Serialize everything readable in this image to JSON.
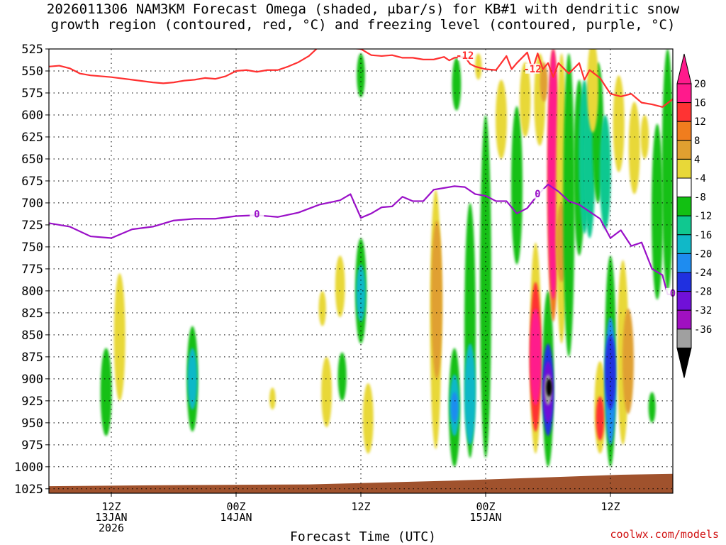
{
  "title_line1": "2026011306 NAM3KM Forecast Omega (shaded, μbar/s) for KB#1 with dendritic snow",
  "title_line2": "growth region (contoured, red, °C) and freezing level (contoured, purple, °C)",
  "credit": "coolwx.com/models",
  "chart_data": {
    "type": "heatmap",
    "xlabel": "Forecast Time (UTC)",
    "ylabel": "",
    "x_ticks": [
      {
        "t": 6,
        "label": [
          "12Z",
          "13JAN",
          "2026"
        ]
      },
      {
        "t": 18,
        "label": [
          "00Z",
          "14JAN"
        ]
      },
      {
        "t": 30,
        "label": [
          "12Z"
        ]
      },
      {
        "t": 42,
        "label": [
          "00Z",
          "15JAN"
        ]
      },
      {
        "t": 54,
        "label": [
          "12Z"
        ]
      }
    ],
    "x_range_hours": [
      0,
      60
    ],
    "y_levels": [
      525,
      550,
      575,
      600,
      625,
      650,
      675,
      700,
      725,
      750,
      775,
      800,
      825,
      850,
      875,
      900,
      925,
      950,
      975,
      1000,
      1025
    ],
    "y_range": [
      525,
      1030
    ],
    "grid": true,
    "colorbar": {
      "labels": [
        "20",
        "16",
        "12",
        "8",
        "4",
        "-4",
        "-8",
        "-12",
        "-16",
        "-20",
        "-24",
        "-28",
        "-32",
        "-36"
      ],
      "bins": [
        {
          "lo": 20,
          "hi": 24,
          "color": "#ff1a8c"
        },
        {
          "lo": 16,
          "hi": 20,
          "color": "#ff3333"
        },
        {
          "lo": 12,
          "hi": 16,
          "color": "#f07d1e"
        },
        {
          "lo": 8,
          "hi": 12,
          "color": "#e0a030"
        },
        {
          "lo": 4,
          "hi": 8,
          "color": "#e8d838"
        },
        {
          "lo": -4,
          "hi": 4,
          "color": "#ffffff"
        },
        {
          "lo": -8,
          "hi": -4,
          "color": "#12c012"
        },
        {
          "lo": -12,
          "hi": -8,
          "color": "#10c890"
        },
        {
          "lo": -16,
          "hi": -12,
          "color": "#10b8c8"
        },
        {
          "lo": -20,
          "hi": -16,
          "color": "#1e8cf0"
        },
        {
          "lo": -24,
          "hi": -20,
          "color": "#2030e0"
        },
        {
          "lo": -28,
          "hi": -24,
          "color": "#7010d8"
        },
        {
          "lo": -32,
          "hi": -28,
          "color": "#a010c0"
        },
        {
          "lo": -36,
          "hi": -32,
          "color": "#a0a0a0"
        }
      ]
    },
    "omega_cells": [
      {
        "t": 5.5,
        "p0": 865,
        "p1": 965,
        "v": -6
      },
      {
        "t": 6.8,
        "p0": 780,
        "p1": 925,
        "v": 5
      },
      {
        "t": 13.8,
        "p0": 840,
        "p1": 960,
        "v": -6
      },
      {
        "t": 13.8,
        "p0": 865,
        "p1": 935,
        "v": -13
      },
      {
        "t": 21.5,
        "p0": 910,
        "p1": 935,
        "v": 5
      },
      {
        "t": 26.3,
        "p0": 800,
        "p1": 840,
        "v": 5
      },
      {
        "t": 26.7,
        "p0": 875,
        "p1": 955,
        "v": 5
      },
      {
        "t": 28.0,
        "p0": 760,
        "p1": 830,
        "v": 5
      },
      {
        "t": 28.2,
        "p0": 870,
        "p1": 925,
        "v": -6
      },
      {
        "t": 30.0,
        "p0": 740,
        "p1": 860,
        "v": -6
      },
      {
        "t": 30.0,
        "p0": 770,
        "p1": 835,
        "v": -13
      },
      {
        "t": 30.7,
        "p0": 905,
        "p1": 985,
        "v": 5
      },
      {
        "t": 30.0,
        "p0": 530,
        "p1": 580,
        "v": -6
      },
      {
        "t": 37.2,
        "p0": 685,
        "p1": 980,
        "v": 5
      },
      {
        "t": 37.3,
        "p0": 720,
        "p1": 900,
        "v": 9
      },
      {
        "t": 39.2,
        "p0": 535,
        "p1": 595,
        "v": -6
      },
      {
        "t": 39.0,
        "p0": 865,
        "p1": 1000,
        "v": -6
      },
      {
        "t": 39.0,
        "p0": 895,
        "p1": 965,
        "v": -14
      },
      {
        "t": 39.0,
        "p0": 915,
        "p1": 950,
        "v": -17
      },
      {
        "t": 40.5,
        "p0": 700,
        "p1": 990,
        "v": -6
      },
      {
        "t": 40.5,
        "p0": 860,
        "p1": 975,
        "v": -13
      },
      {
        "t": 42.0,
        "p0": 600,
        "p1": 990,
        "v": -6
      },
      {
        "t": 41.3,
        "p0": 530,
        "p1": 560,
        "v": 5
      },
      {
        "t": 43.5,
        "p0": 560,
        "p1": 650,
        "v": 5
      },
      {
        "t": 45.0,
        "p0": 590,
        "p1": 770,
        "v": -6
      },
      {
        "t": 45.8,
        "p0": 540,
        "p1": 625,
        "v": 5
      },
      {
        "t": 46.8,
        "p0": 745,
        "p1": 985,
        "v": 5
      },
      {
        "t": 46.8,
        "p0": 790,
        "p1": 960,
        "v": 17
      },
      {
        "t": 46.8,
        "p0": 820,
        "p1": 930,
        "v": 21
      },
      {
        "t": 47.2,
        "p0": 530,
        "p1": 635,
        "v": 5
      },
      {
        "t": 47.6,
        "p0": 540,
        "p1": 585,
        "v": 9
      },
      {
        "t": 48.0,
        "p0": 800,
        "p1": 1000,
        "v": -6
      },
      {
        "t": 48.0,
        "p0": 860,
        "p1": 965,
        "v": -22
      },
      {
        "t": 48.0,
        "p0": 880,
        "p1": 950,
        "v": -27
      },
      {
        "t": 48.0,
        "p0": 895,
        "p1": 930,
        "v": -33
      },
      {
        "t": 48.1,
        "p0": 900,
        "p1": 920,
        "v": -38
      },
      {
        "t": 48.5,
        "p0": 525,
        "p1": 835,
        "v": 13
      },
      {
        "t": 48.5,
        "p0": 525,
        "p1": 810,
        "v": 21
      },
      {
        "t": 49.3,
        "p0": 530,
        "p1": 860,
        "v": 5
      },
      {
        "t": 49.3,
        "p0": 700,
        "p1": 790,
        "v": 9
      },
      {
        "t": 50.0,
        "p0": 530,
        "p1": 875,
        "v": -6
      },
      {
        "t": 51.0,
        "p0": 560,
        "p1": 760,
        "v": -6
      },
      {
        "t": 51.5,
        "p0": 560,
        "p1": 735,
        "v": -9
      },
      {
        "t": 52.0,
        "p0": 560,
        "p1": 740,
        "v": -9
      },
      {
        "t": 52.8,
        "p0": 540,
        "p1": 700,
        "v": -6
      },
      {
        "t": 53.5,
        "p0": 600,
        "p1": 730,
        "v": -9
      },
      {
        "t": 52.3,
        "p0": 515,
        "p1": 620,
        "v": 5
      },
      {
        "t": 53.0,
        "p0": 880,
        "p1": 985,
        "v": 5
      },
      {
        "t": 53.0,
        "p0": 920,
        "p1": 970,
        "v": 17
      },
      {
        "t": 54.0,
        "p0": 760,
        "p1": 1000,
        "v": -6
      },
      {
        "t": 54.0,
        "p0": 830,
        "p1": 975,
        "v": -17
      },
      {
        "t": 54.0,
        "p0": 850,
        "p1": 935,
        "v": -23
      },
      {
        "t": 55.2,
        "p0": 765,
        "p1": 975,
        "v": 5
      },
      {
        "t": 55.7,
        "p0": 820,
        "p1": 940,
        "v": 9
      },
      {
        "t": 54.8,
        "p0": 555,
        "p1": 665,
        "v": 5
      },
      {
        "t": 56.3,
        "p0": 585,
        "p1": 690,
        "v": 5
      },
      {
        "t": 57.3,
        "p0": 600,
        "p1": 650,
        "v": 5
      },
      {
        "t": 58.5,
        "p0": 610,
        "p1": 810,
        "v": -6
      },
      {
        "t": 58.0,
        "p0": 915,
        "p1": 950,
        "v": -6
      },
      {
        "t": 59.5,
        "p0": 525,
        "p1": 800,
        "v": -6
      }
    ],
    "freezing_level": {
      "label": "0",
      "t": [
        0,
        2,
        4,
        6,
        8,
        10,
        12,
        14,
        16,
        18,
        20,
        22,
        24,
        26,
        28,
        29,
        30,
        31,
        32,
        33,
        34,
        35,
        36,
        37,
        38,
        39,
        40,
        41,
        42,
        43,
        44,
        45,
        46,
        47,
        48,
        49,
        50,
        51,
        52,
        53,
        54,
        55,
        56,
        57,
        58,
        59,
        59.5,
        60
      ],
      "p": [
        723,
        727,
        738,
        740,
        730,
        727,
        720,
        718,
        718,
        715,
        714,
        716,
        711,
        702,
        697,
        690,
        717,
        712,
        705,
        704,
        693,
        698,
        698,
        685,
        683,
        681,
        682,
        690,
        692,
        698,
        698,
        712,
        706,
        691,
        679,
        687,
        698,
        702,
        710,
        718,
        740,
        731,
        749,
        745,
        775,
        782,
        804,
        804
      ]
    },
    "dgz_line": {
      "label": "-12",
      "t": [
        0,
        1,
        2,
        3,
        4,
        5,
        6,
        8,
        10,
        11,
        12,
        13,
        14,
        15,
        16,
        17,
        18,
        19,
        20,
        21,
        22,
        23,
        24,
        25,
        26,
        27,
        28,
        29,
        30,
        31,
        32,
        33,
        34,
        35,
        36,
        37,
        38,
        38.5,
        39,
        40,
        40.5,
        41,
        42,
        43,
        44,
        44.5,
        45,
        46,
        46.5,
        47,
        47.5,
        48,
        48.5,
        49,
        50,
        51,
        51.5,
        52,
        53,
        54,
        55,
        56,
        57,
        58,
        59,
        60
      ],
      "p": [
        545,
        544,
        547,
        553,
        555,
        556,
        557,
        560,
        563,
        564,
        563,
        561,
        560,
        558,
        559,
        556,
        550,
        549,
        551,
        549,
        549,
        545,
        540,
        533,
        522,
        522,
        522,
        524,
        525,
        532,
        533,
        532,
        535,
        535,
        537,
        537,
        534,
        538,
        535,
        534,
        542,
        545,
        548,
        549,
        533,
        548,
        541,
        529,
        549,
        530,
        548,
        541,
        557,
        541,
        553,
        541,
        560,
        549,
        558,
        576,
        579,
        576,
        586,
        588,
        591,
        582
      ]
    },
    "terrain_p": [
      1022,
      1021,
      1020,
      1016,
      1012,
      1009,
      1008
    ],
    "terrain_t": [
      0,
      10,
      25,
      38,
      48,
      55,
      60
    ]
  }
}
